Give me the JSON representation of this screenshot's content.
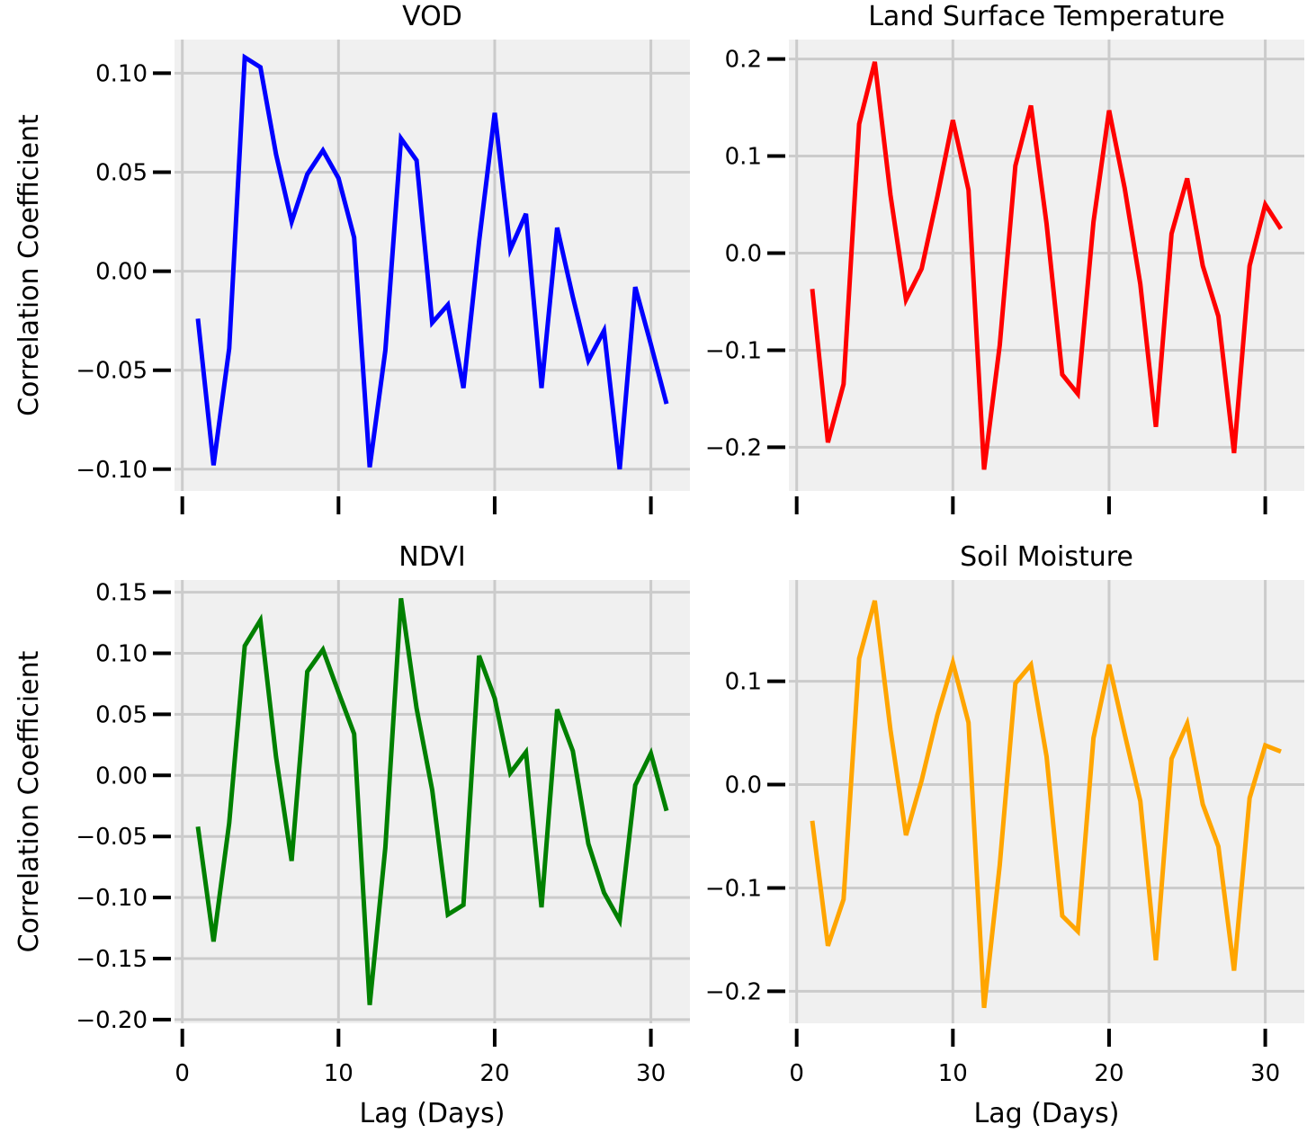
{
  "chart_data": [
    {
      "type": "line",
      "title": "VOD",
      "xlabel": "",
      "ylabel": "Correlation Coefficient",
      "color": "#0000ff",
      "xlim": [
        -0.5,
        32.5
      ],
      "ylim": [
        -0.111,
        0.117
      ],
      "xticks": [
        0,
        10,
        20,
        30
      ],
      "xtick_labels": [],
      "yticks": [
        -0.1,
        -0.05,
        0.0,
        0.05,
        0.1
      ],
      "ytick_labels": [
        "−0.10",
        "−0.05",
        "0.00",
        "0.05",
        "0.10"
      ],
      "grid": true,
      "x": [
        1,
        2,
        3,
        4,
        5,
        6,
        7,
        8,
        9,
        10,
        11,
        12,
        13,
        14,
        15,
        16,
        17,
        18,
        19,
        20,
        21,
        22,
        23,
        24,
        25,
        26,
        27,
        28,
        29,
        30,
        31
      ],
      "values": [
        -0.024,
        -0.098,
        -0.039,
        0.108,
        0.103,
        0.059,
        0.025,
        0.049,
        0.061,
        0.047,
        0.017,
        -0.099,
        -0.04,
        0.067,
        0.056,
        -0.026,
        -0.017,
        -0.059,
        0.015,
        0.08,
        0.011,
        0.029,
        -0.059,
        0.022,
        -0.013,
        -0.045,
        -0.03,
        -0.1,
        -0.008,
        -0.037,
        -0.067
      ]
    },
    {
      "type": "line",
      "title": "Land Surface Temperature",
      "xlabel": "",
      "ylabel": "",
      "color": "#ff0000",
      "xlim": [
        -0.5,
        32.5
      ],
      "ylim": [
        -0.245,
        0.22
      ],
      "xticks": [
        0,
        10,
        20,
        30
      ],
      "xtick_labels": [],
      "yticks": [
        -0.2,
        -0.1,
        0.0,
        0.1,
        0.2
      ],
      "ytick_labels": [
        "−0.2",
        "−0.1",
        "0.0",
        "0.1",
        "0.2"
      ],
      "grid": true,
      "x": [
        1,
        2,
        3,
        4,
        5,
        6,
        7,
        8,
        9,
        10,
        11,
        12,
        13,
        14,
        15,
        16,
        17,
        18,
        19,
        20,
        21,
        22,
        23,
        24,
        25,
        26,
        27,
        28,
        29,
        30,
        31
      ],
      "values": [
        -0.037,
        -0.195,
        -0.135,
        0.133,
        0.197,
        0.06,
        -0.048,
        -0.016,
        0.058,
        0.137,
        0.065,
        -0.223,
        -0.095,
        0.09,
        0.152,
        0.03,
        -0.125,
        -0.145,
        0.032,
        0.147,
        0.067,
        -0.032,
        -0.179,
        0.02,
        0.077,
        -0.013,
        -0.065,
        -0.206,
        -0.013,
        0.05,
        0.025
      ]
    },
    {
      "type": "line",
      "title": "NDVI",
      "xlabel": "Lag (Days)",
      "ylabel": "Correlation Coefficient",
      "color": "#008000",
      "xlim": [
        -0.5,
        32.5
      ],
      "ylim": [
        -0.203,
        0.16
      ],
      "xticks": [
        0,
        10,
        20,
        30
      ],
      "xtick_labels": [
        "0",
        "10",
        "20",
        "30"
      ],
      "yticks": [
        -0.2,
        -0.15,
        -0.1,
        -0.05,
        0.0,
        0.05,
        0.1,
        0.15
      ],
      "ytick_labels": [
        "−0.20",
        "−0.15",
        "−0.10",
        "−0.05",
        "0.00",
        "0.05",
        "0.10",
        "0.15"
      ],
      "grid": true,
      "x": [
        1,
        2,
        3,
        4,
        5,
        6,
        7,
        8,
        9,
        10,
        11,
        12,
        13,
        14,
        15,
        16,
        17,
        18,
        19,
        20,
        21,
        22,
        23,
        24,
        25,
        26,
        27,
        28,
        29,
        30,
        31
      ],
      "values": [
        -0.042,
        -0.136,
        -0.039,
        0.106,
        0.127,
        0.015,
        -0.07,
        0.085,
        0.103,
        0.068,
        0.034,
        -0.188,
        -0.059,
        0.145,
        0.055,
        -0.012,
        -0.114,
        -0.106,
        0.098,
        0.063,
        0.002,
        0.019,
        -0.108,
        0.054,
        0.02,
        -0.056,
        -0.096,
        -0.119,
        -0.008,
        0.018,
        -0.029
      ]
    },
    {
      "type": "line",
      "title": "Soil Moisture",
      "xlabel": "Lag (Days)",
      "ylabel": "",
      "color": "#ffa500",
      "xlim": [
        -0.5,
        32.5
      ],
      "ylim": [
        -0.231,
        0.198
      ],
      "xticks": [
        0,
        10,
        20,
        30
      ],
      "xtick_labels": [
        "0",
        "10",
        "20",
        "30"
      ],
      "yticks": [
        -0.2,
        -0.1,
        0.0,
        0.1
      ],
      "ytick_labels": [
        "−0.2",
        "−0.1",
        "0.0",
        "0.1"
      ],
      "grid": true,
      "x": [
        1,
        2,
        3,
        4,
        5,
        6,
        7,
        8,
        9,
        10,
        11,
        12,
        13,
        14,
        15,
        16,
        17,
        18,
        19,
        20,
        21,
        22,
        23,
        24,
        25,
        26,
        27,
        28,
        29,
        30,
        31
      ],
      "values": [
        -0.035,
        -0.156,
        -0.111,
        0.122,
        0.178,
        0.053,
        -0.049,
        0.004,
        0.067,
        0.118,
        0.06,
        -0.216,
        -0.078,
        0.098,
        0.116,
        0.027,
        -0.127,
        -0.142,
        0.045,
        0.116,
        0.049,
        -0.016,
        -0.17,
        0.025,
        0.059,
        -0.019,
        -0.06,
        -0.18,
        -0.013,
        0.038,
        0.032
      ]
    }
  ]
}
